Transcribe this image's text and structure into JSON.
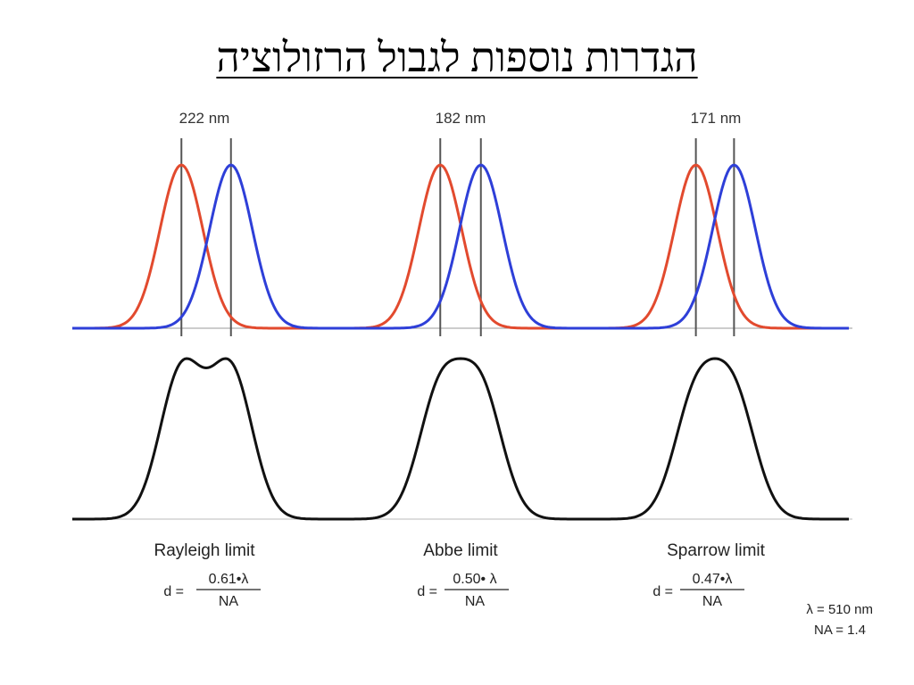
{
  "title": "הגדרות נוספות לגבול הרזולוציה",
  "colors": {
    "psf_a": "#e24a2e",
    "psf_b": "#2e3fd8",
    "sum": "#111111",
    "marker": "#555555"
  },
  "panels": [
    {
      "separation_label": "222 nm",
      "separation_nm": 222,
      "limit_name": "Rayleigh limit",
      "formula_lhs": "d =",
      "formula_numerator": "0.61•λ",
      "formula_denominator": "NA"
    },
    {
      "separation_label": "182 nm",
      "separation_nm": 182,
      "limit_name": "Abbe limit",
      "formula_lhs": "d =",
      "formula_numerator": "0.50• λ",
      "formula_denominator": "NA"
    },
    {
      "separation_label": "171 nm",
      "separation_nm": 171,
      "limit_name": "Sparrow limit",
      "formula_lhs": "d =",
      "formula_numerator": "0.47•λ",
      "formula_denominator": "NA"
    }
  ],
  "parameters": {
    "wavelength": "λ = 510 nm",
    "na": "NA = 1.4"
  }
}
